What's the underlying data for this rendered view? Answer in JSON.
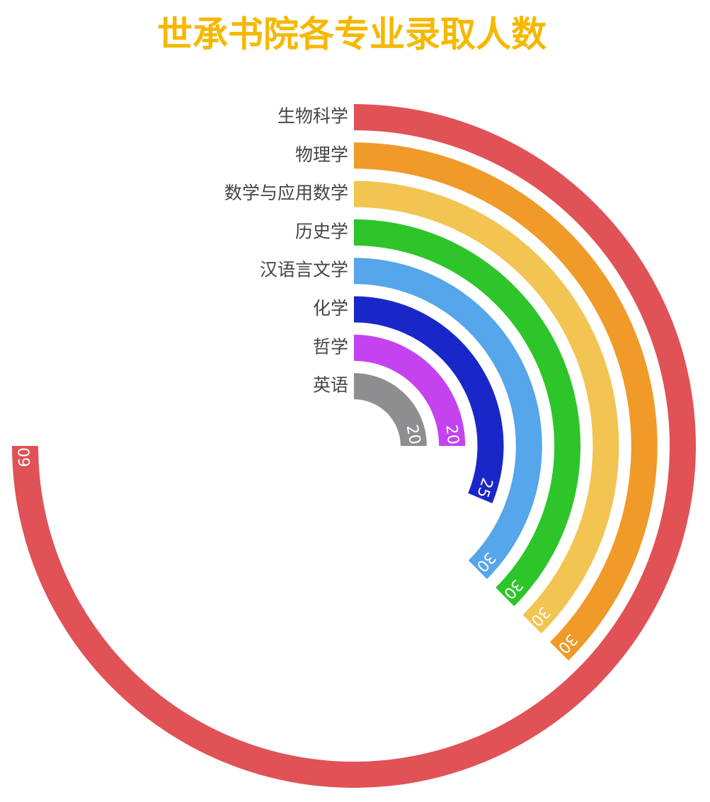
{
  "chart_data": {
    "type": "radial-bar",
    "title": "世承书院各专业录取人数",
    "categories": [
      "生物科学",
      "物理学",
      "数学与应用数学",
      "历史学",
      "汉语言文学",
      "化学",
      "哲学",
      "英语"
    ],
    "values": [
      60,
      30,
      30,
      30,
      30,
      25,
      20,
      20
    ],
    "colors": [
      "#e05256",
      "#ef9a29",
      "#f2c451",
      "#2ec52a",
      "#55a6ea",
      "#1a27c8",
      "#c443ef",
      "#8e8e90"
    ],
    "angular_lim": [
      0,
      80
    ],
    "value_labels_shown": true
  }
}
